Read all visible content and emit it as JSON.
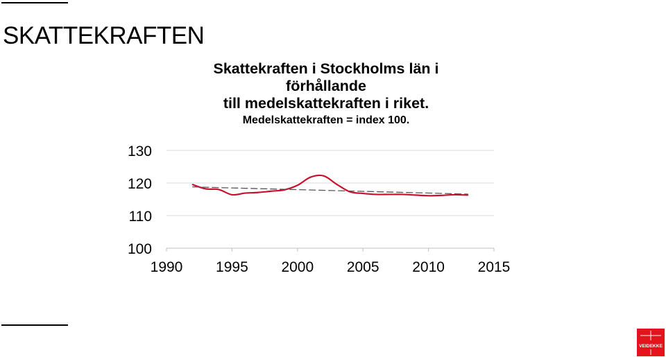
{
  "slide": {
    "title": "SKATTEKRAFTEN"
  },
  "chart_data": {
    "type": "line",
    "title": "Skattekraften i Stockholms län i förhållande till medelskattekraften i riket.",
    "title_lines": [
      "Skattekraften i Stockholms län i",
      "förhållande",
      "till medelskattekraften i riket."
    ],
    "subtitle": "Medelskattekraften = index 100.",
    "xlabel": "",
    "ylabel": "",
    "xlim": [
      1990,
      2015
    ],
    "ylim": [
      100,
      130
    ],
    "xticks": [
      1990,
      1995,
      2000,
      2005,
      2010,
      2015
    ],
    "yticks": [
      100,
      110,
      120,
      130
    ],
    "grid": "horizontal",
    "legend": "none",
    "series": [
      {
        "color": "#c8102e",
        "style": "solid",
        "x": [
          1992,
          1993,
          1994,
          1995,
          1996,
          1997,
          1998,
          1999,
          2000,
          2001,
          2002,
          2003,
          2004,
          2005,
          2006,
          2007,
          2008,
          2009,
          2010,
          2011,
          2012,
          2013
        ],
        "y": [
          119.5,
          118.2,
          118.0,
          116.4,
          116.9,
          117.1,
          117.5,
          117.9,
          119.3,
          121.8,
          122.2,
          119.6,
          117.3,
          116.8,
          116.5,
          116.5,
          116.5,
          116.3,
          116.1,
          116.2,
          116.4,
          116.3
        ]
      },
      {
        "color": "#555555",
        "style": "dashed",
        "x": [
          1992,
          2013
        ],
        "y": [
          118.8,
          116.6
        ]
      }
    ]
  },
  "logo": {
    "text": "VEIDEKKE",
    "color": "#e3141b"
  }
}
